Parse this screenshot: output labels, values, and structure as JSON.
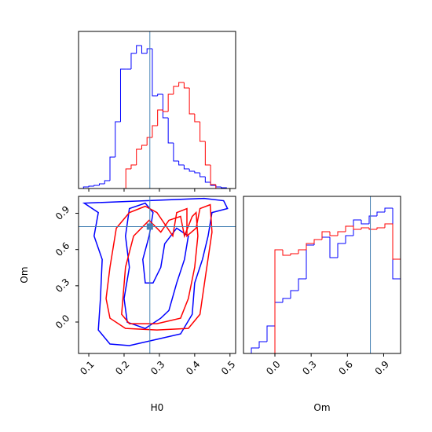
{
  "chart_data": {
    "type": "corner",
    "parameters": [
      {
        "label": "H0",
        "lim": [
          0.071,
          0.516
        ],
        "ticks": [
          0.1,
          0.2,
          0.3,
          0.4,
          0.5
        ],
        "truth": 0.273
      },
      {
        "label": "Om",
        "lim": [
          -0.26,
          1.04
        ],
        "ticks": [
          {
            "value": 0,
            "label": "0.0"
          },
          0.3,
          0.6,
          0.9
        ],
        "truth": 0.79
      }
    ],
    "truth_color": "#4682b4",
    "series": [
      {
        "color": "#0000ff",
        "histograms": [
          {
            "bins": [
              0.085,
              0.1,
              0.115,
              0.13,
              0.145,
              0.16,
              0.175,
              0.19,
              0.205,
              0.22,
              0.235,
              0.25,
              0.265,
              0.28,
              0.295,
              0.31,
              0.325,
              0.34,
              0.355,
              0.37,
              0.385,
              0.4,
              0.415,
              0.43,
              0.445,
              0.46,
              0.475,
              0.49
            ],
            "values": [
              2,
              3,
              4,
              6,
              10,
              40,
              85,
              152,
              152,
              172,
              182,
              172,
              178,
              118,
              120,
              90,
              58,
              35,
              30,
              25,
              22,
              20,
              15,
              8,
              4,
              2,
              1
            ],
            "ylim": [
              0,
              200
            ]
          },
          {
            "bins": [
              -0.195,
              -0.13,
              -0.065,
              0,
              0.065,
              0.13,
              0.195,
              0.26,
              0.325,
              0.39,
              0.455,
              0.52,
              0.585,
              0.65,
              0.715,
              0.78,
              0.845,
              0.91,
              0.975,
              1.04
            ],
            "values": [
              7,
              15,
              35,
              65,
              70,
              80,
              95,
              138,
              145,
              148,
              122,
              140,
              150,
              170,
              165,
              175,
              180,
              185,
              95
            ],
            "ylim": [
              0,
              200
            ]
          }
        ],
        "contours": [
          {
            "x": [
              0.087,
              0.127,
              0.115,
              0.138,
              0.133,
              0.127,
              0.16,
              0.215,
              0.293,
              0.36,
              0.393,
              0.4,
              0.422,
              0.438,
              0.449,
              0.493,
              0.482,
              0.427
            ],
            "y": [
              0.984,
              0.906,
              0.712,
              0.518,
              0.194,
              -0.066,
              -0.182,
              -0.195,
              -0.143,
              -0.098,
              0.064,
              0.323,
              0.518,
              0.712,
              0.906,
              0.939,
              1.004,
              1.023
            ]
          },
          {
            "x": [
              0.215,
              0.204,
              0.215,
              0.2,
              0.209,
              0.26,
              0.304,
              0.327,
              0.349,
              0.371,
              0.382,
              0.349,
              0.315,
              0.304,
              0.282,
              0.26,
              0.253,
              0.271,
              0.282,
              0.26
            ],
            "y": [
              0.939,
              0.712,
              0.453,
              0.194,
              -0.001,
              -0.053,
              0.032,
              0.096,
              0.323,
              0.518,
              0.712,
              0.777,
              0.647,
              0.453,
              0.323,
              0.323,
              0.518,
              0.712,
              0.906,
              0.984
            ]
          }
        ]
      },
      {
        "color": "#ff0000",
        "histograms": [
          {
            "bins": [
              0.085,
              0.1,
              0.115,
              0.13,
              0.145,
              0.16,
              0.175,
              0.19,
              0.205,
              0.22,
              0.235,
              0.25,
              0.265,
              0.28,
              0.295,
              0.31,
              0.325,
              0.34,
              0.355,
              0.37,
              0.385,
              0.4,
              0.415,
              0.43,
              0.445,
              0.46,
              0.475,
              0.49
            ],
            "values": [
              0,
              0,
              0,
              0,
              0,
              0,
              0,
              0,
              25,
              30,
              50,
              55,
              65,
              80,
              100,
              98,
              120,
              130,
              135,
              128,
              95,
              85,
              60,
              30,
              5,
              0,
              0
            ],
            "ylim": [
              0,
              200
            ]
          },
          {
            "bins": [
              -0.195,
              -0.13,
              -0.065,
              0,
              0.065,
              0.13,
              0.195,
              0.26,
              0.325,
              0.39,
              0.455,
              0.52,
              0.585,
              0.65,
              0.715,
              0.78,
              0.845,
              0.91,
              0.975,
              1.04
            ],
            "values": [
              0,
              0,
              0,
              132,
              125,
              127,
              132,
              140,
              145,
              155,
              150,
              155,
              162,
              158,
              160,
              158,
              160,
              165,
              120
            ],
            "ylim": [
              0,
              200
            ]
          }
        ],
        "contours": [
          {
            "x": [
              0.178,
              0.16,
              0.149,
              0.16,
              0.204,
              0.293,
              0.382,
              0.415,
              0.431,
              0.449,
              0.444,
              0.415,
              0.404,
              0.378,
              0.378,
              0.349,
              0.338,
              0.293,
              0.26,
              0.215
            ],
            "y": [
              0.777,
              0.453,
              0.194,
              0.032,
              -0.053,
              -0.066,
              -0.053,
              0.064,
              0.388,
              0.744,
              0.971,
              0.939,
              0.777,
              0.712,
              0.939,
              0.906,
              0.712,
              0.906,
              0.958,
              0.906
            ]
          },
          {
            "x": [
              0.227,
              0.204,
              0.193,
              0.215,
              0.293,
              0.36,
              0.382,
              0.4,
              0.409,
              0.404,
              0.393,
              0.371,
              0.36,
              0.327,
              0.304,
              0.271
            ],
            "y": [
              0.712,
              0.453,
              0.064,
              -0.014,
              -0.014,
              0.032,
              0.194,
              0.453,
              0.712,
              0.906,
              0.874,
              0.712,
              0.874,
              0.842,
              0.744,
              0.842
            ]
          }
        ]
      }
    ]
  }
}
